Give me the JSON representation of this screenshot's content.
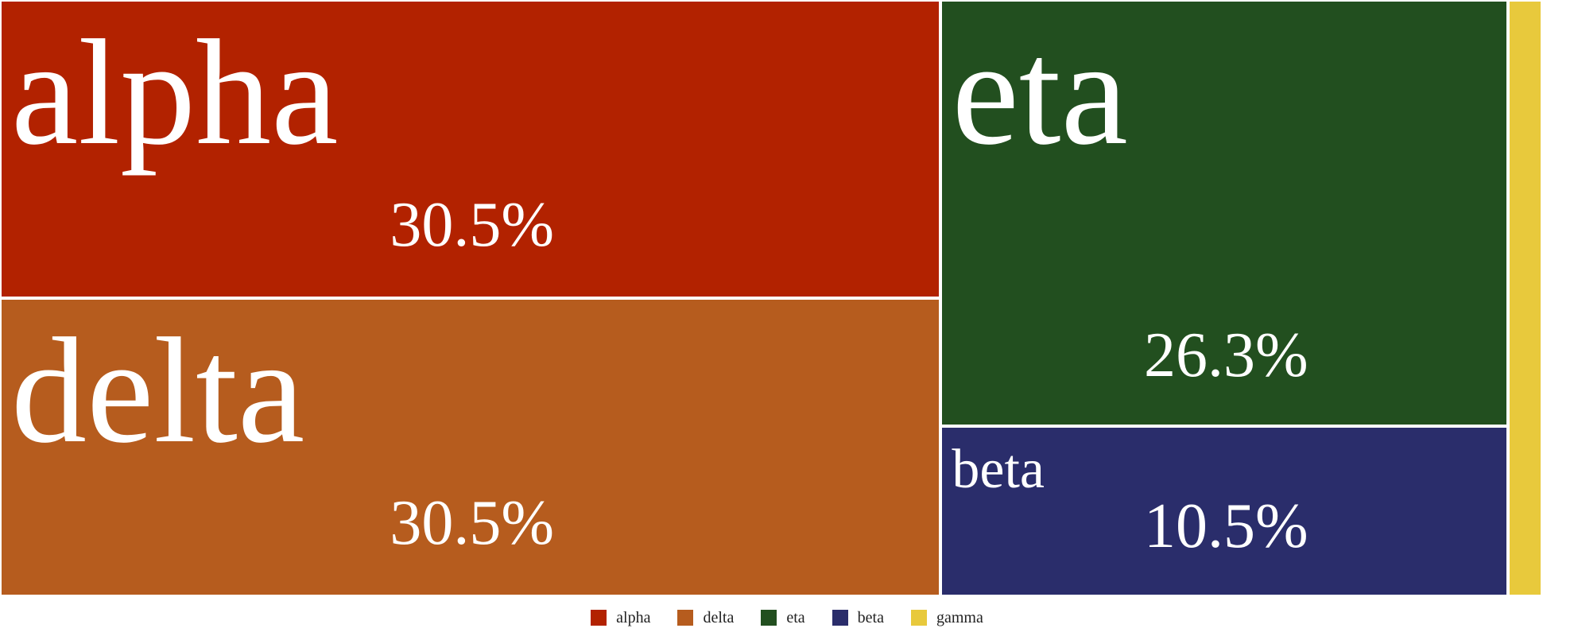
{
  "chart_data": {
    "type": "treemap",
    "cells": [
      {
        "name": "alpha",
        "value": 30.5,
        "label": "30.5%",
        "color": "#b22200"
      },
      {
        "name": "delta",
        "value": 30.5,
        "label": "30.5%",
        "color": "#b65c1e"
      },
      {
        "name": "eta",
        "value": 26.3,
        "label": "26.3%",
        "color": "#224f1f"
      },
      {
        "name": "beta",
        "value": 10.5,
        "label": "10.5%",
        "color": "#2a2d6b"
      },
      {
        "name": "gamma",
        "value": 2.2,
        "label": "",
        "color": "#e8c93c"
      }
    ],
    "legend": [
      "alpha",
      "delta",
      "eta",
      "beta",
      "gamma"
    ],
    "legend_position": "bottom"
  }
}
